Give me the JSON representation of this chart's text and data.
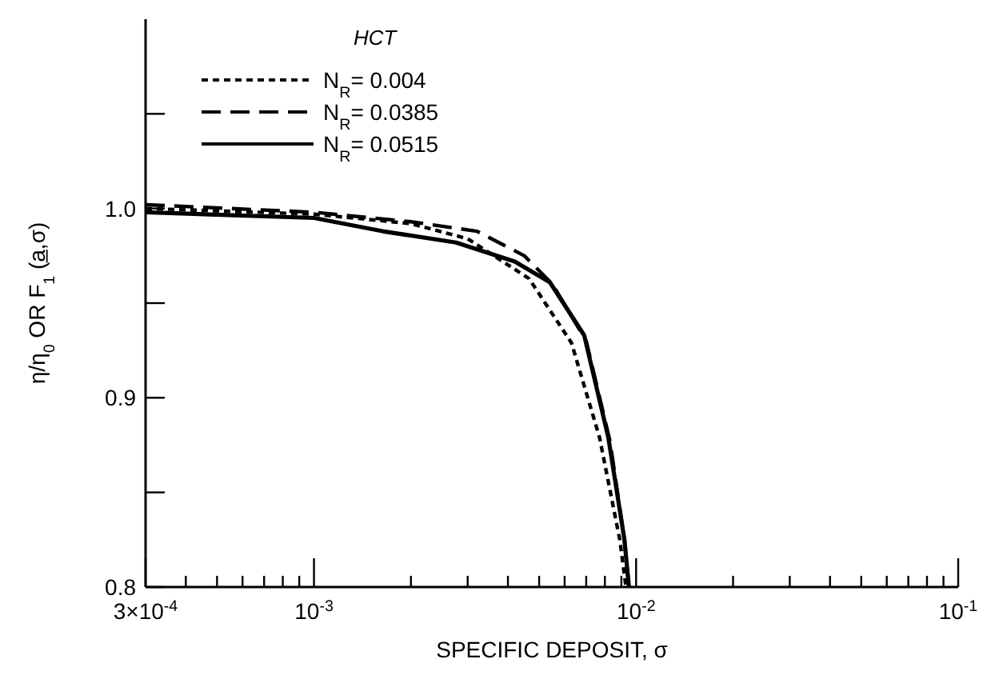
{
  "chart_data": {
    "type": "line",
    "xlabel": "SPECIFIC DEPOSIT, σ",
    "ylabel": "η/η$_{0}$ OR F$_{1}$ (a̲,σ)",
    "legend_title": "HCT",
    "legend": "top left",
    "log": "x",
    "xlim": [
      0.0003,
      0.1
    ],
    "ylim": [
      0.8,
      1.1
    ],
    "xticks": [
      {
        "value": 0.0003,
        "label": "3×10$^{-4}$"
      },
      {
        "value": 0.0004,
        "label": null
      },
      {
        "value": 0.0005,
        "label": null
      },
      {
        "value": 0.0006,
        "label": null
      },
      {
        "value": 0.0007,
        "label": null
      },
      {
        "value": 0.0008,
        "label": null
      },
      {
        "value": 0.0009,
        "label": null
      },
      {
        "value": 0.001,
        "label": "10$^{-3}$"
      },
      {
        "value": 0.002,
        "label": null
      },
      {
        "value": 0.003,
        "label": null
      },
      {
        "value": 0.004,
        "label": null
      },
      {
        "value": 0.005,
        "label": null
      },
      {
        "value": 0.006,
        "label": null
      },
      {
        "value": 0.007,
        "label": null
      },
      {
        "value": 0.008,
        "label": null
      },
      {
        "value": 0.009,
        "label": null
      },
      {
        "value": 0.01,
        "label": "10$^{-2}$"
      },
      {
        "value": 0.02,
        "label": null
      },
      {
        "value": 0.03,
        "label": null
      },
      {
        "value": 0.04,
        "label": null
      },
      {
        "value": 0.05,
        "label": null
      },
      {
        "value": 0.06,
        "label": null
      },
      {
        "value": 0.07,
        "label": null
      },
      {
        "value": 0.08,
        "label": null
      },
      {
        "value": 0.09,
        "label": null
      },
      {
        "value": 0.1,
        "label": "10$^{-1}$"
      }
    ],
    "yticks": [
      {
        "value": 0.8,
        "label": "0.8"
      },
      {
        "value": 0.85,
        "label": null
      },
      {
        "value": 0.9,
        "label": "0.9"
      },
      {
        "value": 0.95,
        "label": null
      },
      {
        "value": 1.0,
        "label": "1.0"
      },
      {
        "value": 1.05,
        "label": null
      }
    ],
    "series": [
      {
        "name": "N$_{R}$= 0.004",
        "color": "#000000",
        "line_style": "dotted",
        "x": [
          0.0003,
          0.001,
          0.002,
          0.003,
          0.00465,
          0.0063,
          0.0077,
          0.0089,
          0.0093
        ],
        "values": [
          1.0,
          0.997,
          0.992,
          0.984,
          0.963,
          0.929,
          0.879,
          0.825,
          0.8
        ]
      },
      {
        "name": "N$_{R}$= 0.0385",
        "color": "#000000",
        "line_style": "dashed",
        "x": [
          0.0003,
          0.001,
          0.002,
          0.0032,
          0.0045,
          0.0055,
          0.007,
          0.0083,
          0.0092,
          0.0095
        ],
        "values": [
          1.002,
          0.998,
          0.993,
          0.988,
          0.975,
          0.96,
          0.93,
          0.877,
          0.825,
          0.8
        ]
      },
      {
        "name": "N$_{R}$= 0.0515",
        "color": "#000000",
        "line_style": "solid",
        "x": [
          0.0003,
          0.001,
          0.00163,
          0.00276,
          0.0042,
          0.0054,
          0.0069,
          0.0082,
          0.0092,
          0.0095
        ],
        "values": [
          0.998,
          0.995,
          0.988,
          0.982,
          0.972,
          0.961,
          0.933,
          0.879,
          0.825,
          0.8
        ]
      }
    ]
  }
}
